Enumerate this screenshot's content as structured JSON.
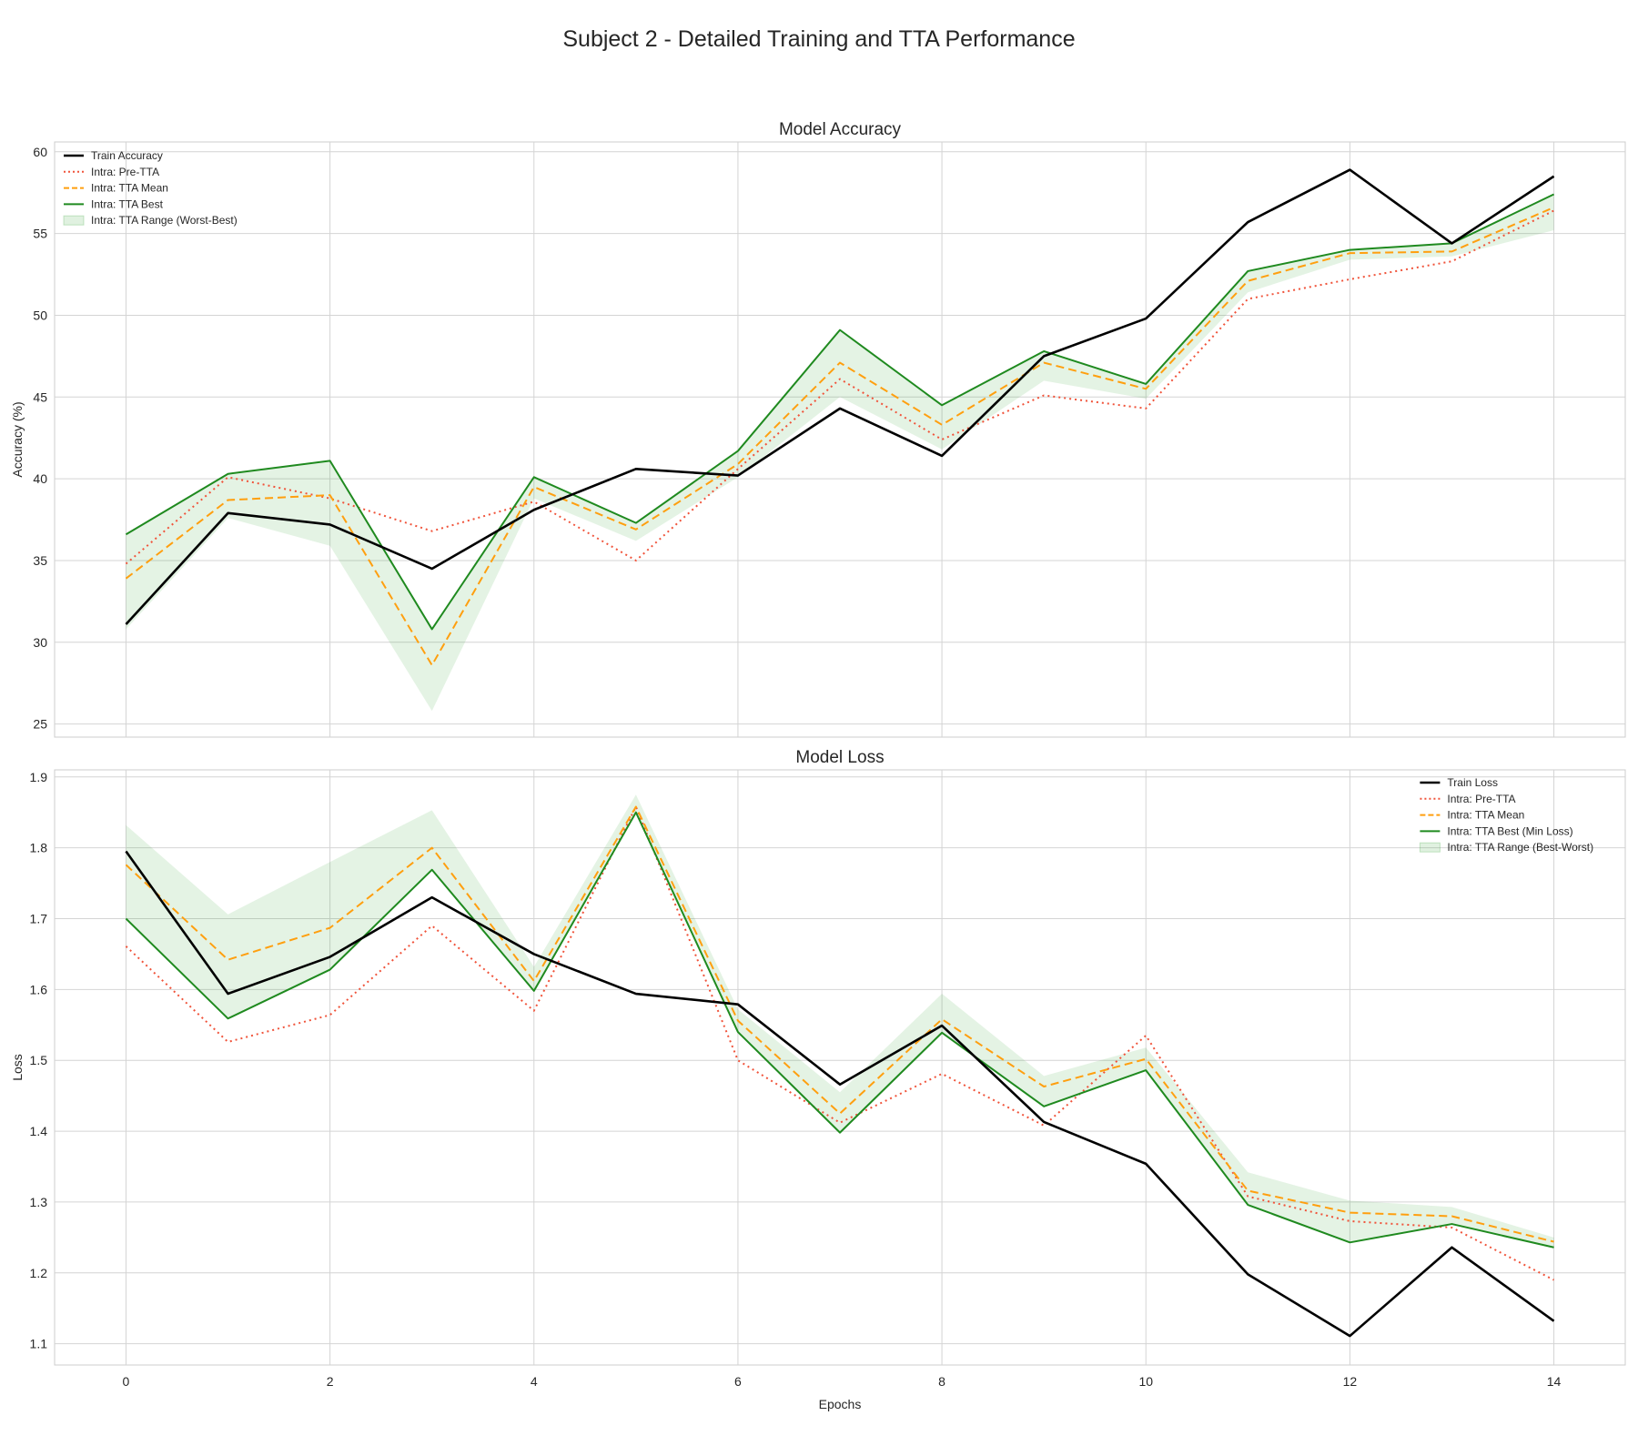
{
  "figure": {
    "title": "Subject 2 - Detailed Training and TTA Performance"
  },
  "chart_data": [
    {
      "type": "line",
      "title": "Model Accuracy",
      "xlabel": "",
      "ylabel": "Accuracy (%)",
      "xlim": [
        -0.7,
        14.7
      ],
      "ylim": [
        24.2,
        60.6
      ],
      "xticks": [
        0,
        2,
        4,
        6,
        8,
        10,
        12,
        14
      ],
      "yticks": [
        25,
        30,
        35,
        40,
        45,
        50,
        55,
        60
      ],
      "grid": true,
      "legend_position": "upper-left",
      "x": [
        0,
        1,
        2,
        3,
        4,
        5,
        6,
        7,
        8,
        9,
        10,
        11,
        12,
        13,
        14
      ],
      "series": [
        {
          "name": "Train Accuracy",
          "style": "solid-thick",
          "color": "#000000",
          "values": [
            31.1,
            37.9,
            37.2,
            34.5,
            38.1,
            40.6,
            40.2,
            44.3,
            41.4,
            47.5,
            49.8,
            55.7,
            58.9,
            54.4,
            58.5
          ]
        },
        {
          "name": "Intra: Pre-TTA",
          "style": "dotted",
          "color": "#f0533a",
          "values": [
            34.8,
            40.1,
            38.8,
            36.8,
            38.6,
            35.0,
            40.6,
            46.1,
            42.4,
            45.1,
            44.3,
            51.0,
            52.2,
            53.3,
            56.4
          ]
        },
        {
          "name": "Intra: TTA Mean",
          "style": "dashed",
          "color": "#ff9f0f",
          "values": [
            33.9,
            38.7,
            39.0,
            28.6,
            39.5,
            36.9,
            40.9,
            47.1,
            43.3,
            47.1,
            45.5,
            52.1,
            53.8,
            53.9,
            56.6
          ]
        },
        {
          "name": "Intra: TTA Best",
          "style": "solid",
          "color": "#1f8a1f",
          "values": [
            36.6,
            40.3,
            41.1,
            30.8,
            40.1,
            37.3,
            41.7,
            49.1,
            44.5,
            47.8,
            45.8,
            52.7,
            54.0,
            54.4,
            57.4
          ]
        }
      ],
      "band": {
        "name": "Intra: TTA Range (Worst-Best)",
        "color": "#2ca02c",
        "lower": [
          30.8,
          37.6,
          35.9,
          25.8,
          38.8,
          36.2,
          40.1,
          45.0,
          41.8,
          46.0,
          44.9,
          51.4,
          53.4,
          53.6,
          55.2
        ],
        "upper": [
          36.6,
          40.3,
          41.1,
          30.8,
          40.1,
          37.3,
          41.7,
          49.1,
          44.5,
          47.8,
          45.8,
          52.7,
          54.0,
          54.4,
          57.4
        ]
      }
    },
    {
      "type": "line",
      "title": "Model Loss",
      "xlabel": "Epochs",
      "ylabel": "Loss",
      "xlim": [
        -0.7,
        14.7
      ],
      "ylim": [
        1.07,
        1.91
      ],
      "xticks": [
        0,
        2,
        4,
        6,
        8,
        10,
        12,
        14
      ],
      "yticks": [
        1.1,
        1.2,
        1.3,
        1.4,
        1.5,
        1.6,
        1.7,
        1.8,
        1.9
      ],
      "grid": true,
      "legend_position": "upper-right",
      "x": [
        0,
        1,
        2,
        3,
        4,
        5,
        6,
        7,
        8,
        9,
        10,
        11,
        12,
        13,
        14
      ],
      "series": [
        {
          "name": "Train Loss",
          "style": "solid-thick",
          "color": "#000000",
          "values": [
            1.795,
            1.594,
            1.646,
            1.73,
            1.65,
            1.594,
            1.579,
            1.466,
            1.549,
            1.413,
            1.354,
            1.198,
            1.111,
            1.236,
            1.132
          ]
        },
        {
          "name": "Intra: Pre-TTA",
          "style": "dotted",
          "color": "#f0533a",
          "values": [
            1.661,
            1.526,
            1.564,
            1.69,
            1.57,
            1.858,
            1.5,
            1.412,
            1.481,
            1.408,
            1.535,
            1.308,
            1.273,
            1.264,
            1.19
          ]
        },
        {
          "name": "Intra: TTA Mean",
          "style": "dashed",
          "color": "#ff9f0f",
          "values": [
            1.776,
            1.642,
            1.687,
            1.8,
            1.612,
            1.858,
            1.556,
            1.425,
            1.558,
            1.463,
            1.502,
            1.316,
            1.285,
            1.28,
            1.244
          ]
        },
        {
          "name": "Intra: TTA Best (Min Loss)",
          "style": "solid",
          "color": "#1f8a1f",
          "values": [
            1.7,
            1.559,
            1.628,
            1.769,
            1.598,
            1.85,
            1.54,
            1.398,
            1.539,
            1.435,
            1.486,
            1.296,
            1.243,
            1.269,
            1.236
          ]
        }
      ],
      "band": {
        "name": "Intra: TTA Range (Best-Worst)",
        "color": "#2ca02c",
        "lower": [
          1.7,
          1.559,
          1.628,
          1.769,
          1.598,
          1.85,
          1.54,
          1.398,
          1.539,
          1.435,
          1.486,
          1.296,
          1.243,
          1.269,
          1.236
        ],
        "upper": [
          1.832,
          1.706,
          1.78,
          1.853,
          1.632,
          1.875,
          1.572,
          1.455,
          1.594,
          1.478,
          1.518,
          1.342,
          1.302,
          1.293,
          1.25
        ]
      }
    }
  ]
}
